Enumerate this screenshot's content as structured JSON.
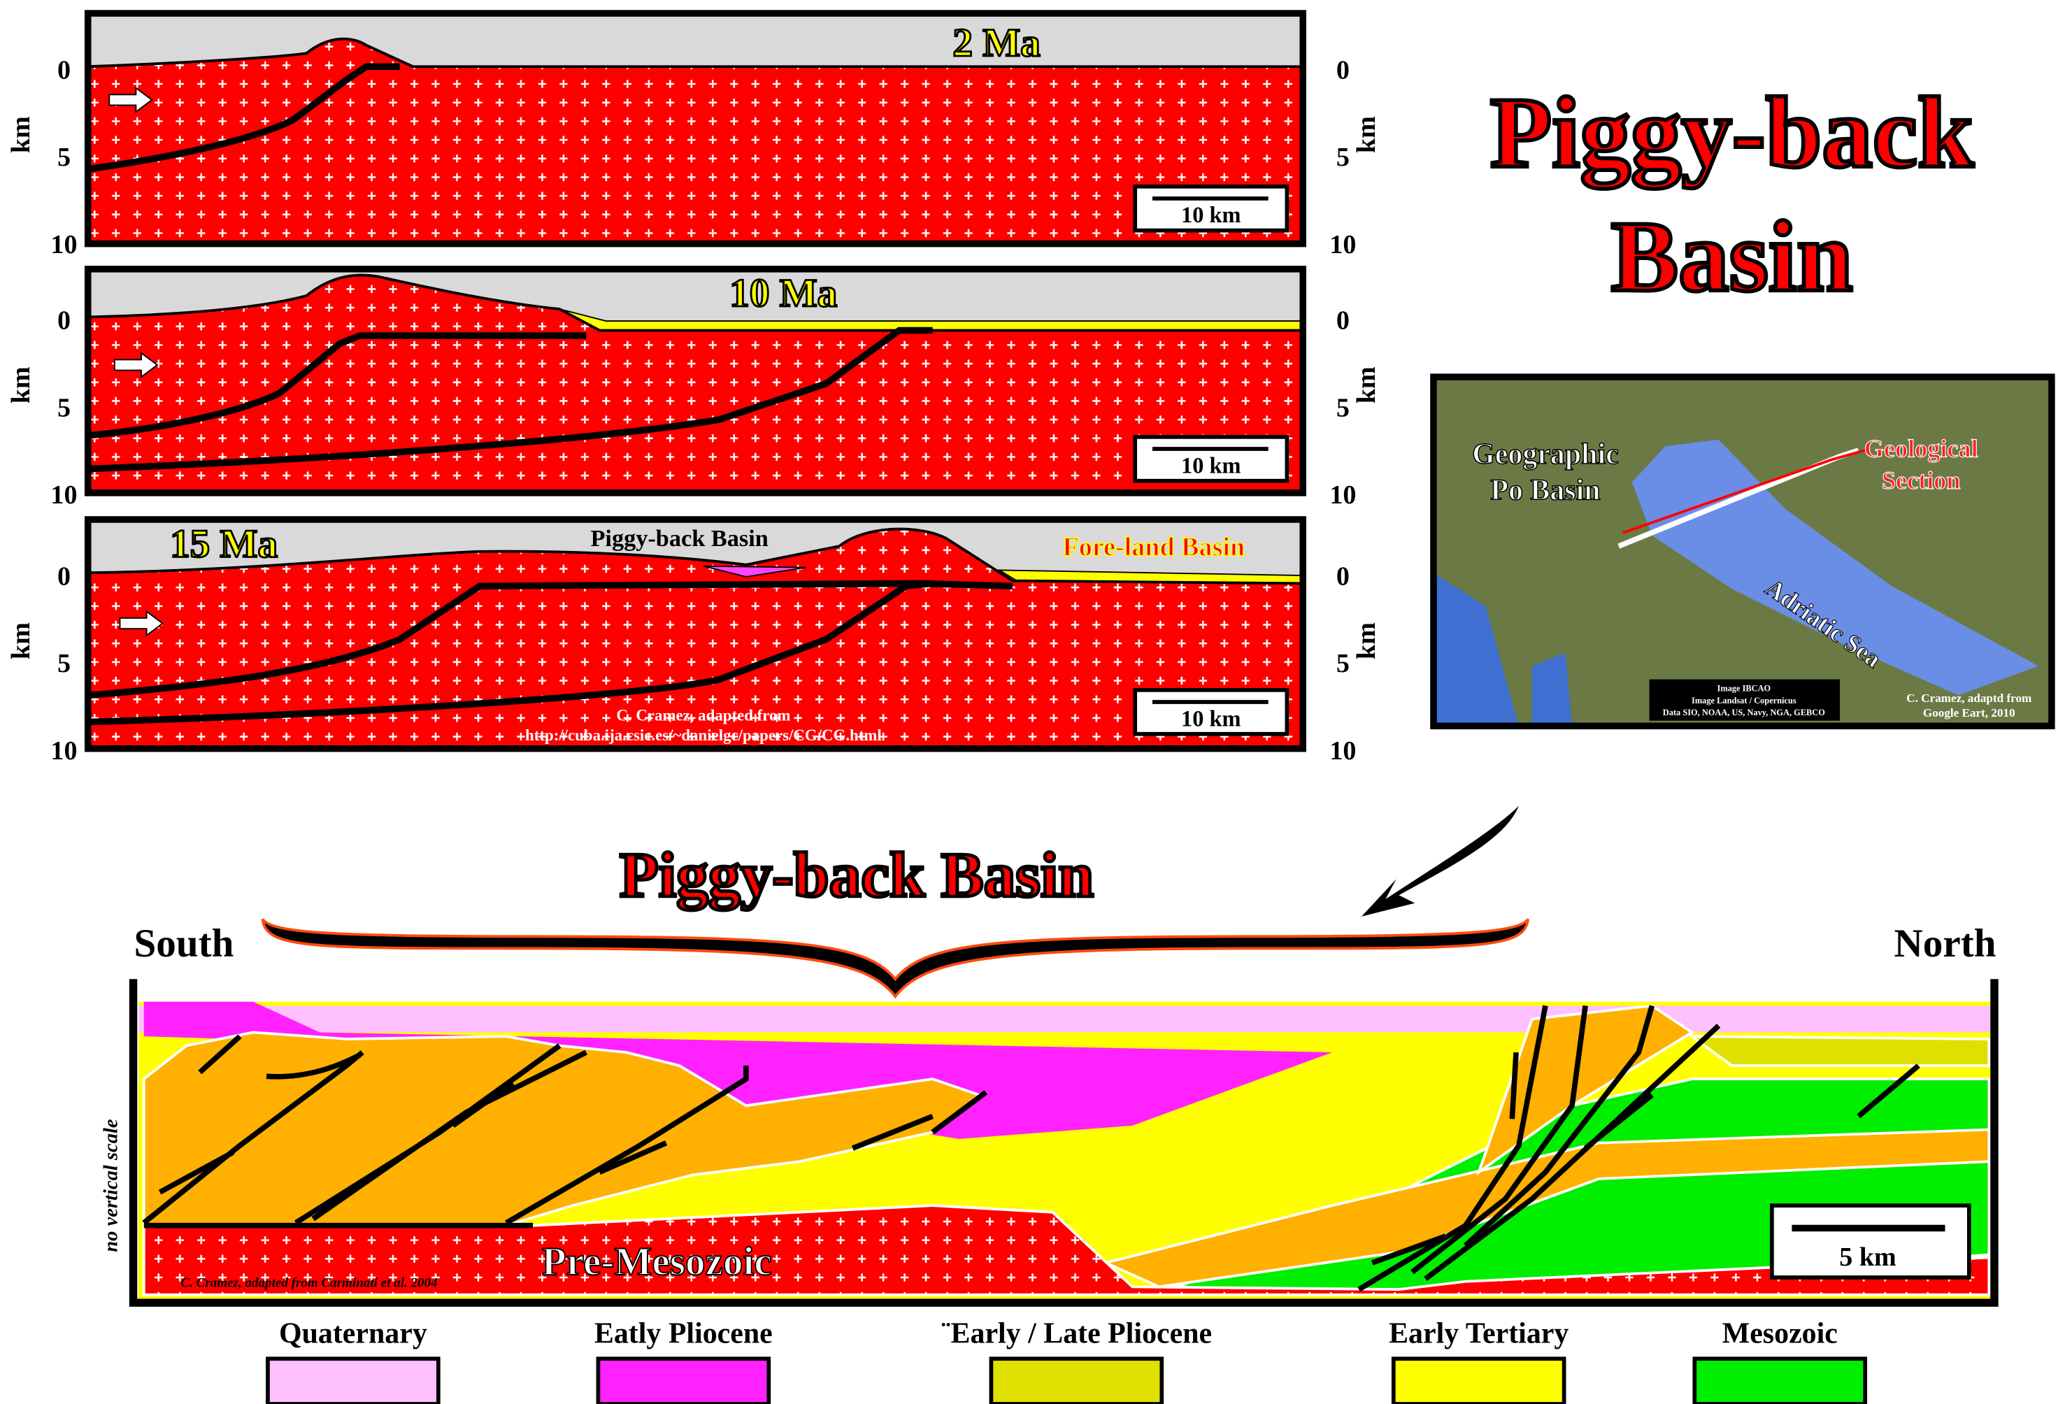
{
  "panels": [
    {
      "age": "2 Ma",
      "axis_label": "km",
      "ticks": [
        0,
        5,
        10
      ],
      "scale_bar": "10 km"
    },
    {
      "age": "10 Ma",
      "axis_label": "km",
      "ticks": [
        0,
        5,
        10
      ],
      "scale_bar": "10 km"
    },
    {
      "age": "15 Ma",
      "axis_label": "km",
      "ticks": [
        0,
        5,
        10
      ],
      "scale_bar": "10 km",
      "basin_labels": [
        "Piggy-back Basin",
        "Fore-land Basin"
      ],
      "credit": [
        "C. Cramez, adapted from",
        "http://cuba.ija.csic.es/~danielgc/papers/CG/CG.html"
      ]
    }
  ],
  "title": [
    "Piggy-back",
    "Basin"
  ],
  "map": {
    "region_label": [
      "Geographic",
      "Po Basin"
    ],
    "section_label": [
      "Geological",
      "Section"
    ],
    "sea_label": "Adriatic Sea",
    "image_credit": [
      "Image IBCAO",
      "Image Landsat / Copernicus",
      "Data SIO, NOAA, US, Navy, NGA, GEBCO"
    ],
    "credit": [
      "C. Cramez, adaptd from",
      "Google Eart, 2010"
    ]
  },
  "section": {
    "title": "Piggy-back Basin",
    "left_label": "South",
    "right_label": "North",
    "vertical_note": "no vertical scale",
    "basement_label": "Pre-Mesozoic",
    "scale_bar": "5 km",
    "credit": "C. Cramez, adapted from Carminati et al. 2004"
  },
  "legend": [
    {
      "label": "Quaternary",
      "color": "#ffc0ff"
    },
    {
      "label": "Eatly Pliocene",
      "color": "#ff22ff"
    },
    {
      "label": "¨Early / Late Pliocene",
      "color": "#e0e000"
    },
    {
      "label": "Early Tertiary",
      "color": "#ffff00"
    },
    {
      "label": "Mesozoic",
      "color": "#00ee00"
    }
  ]
}
